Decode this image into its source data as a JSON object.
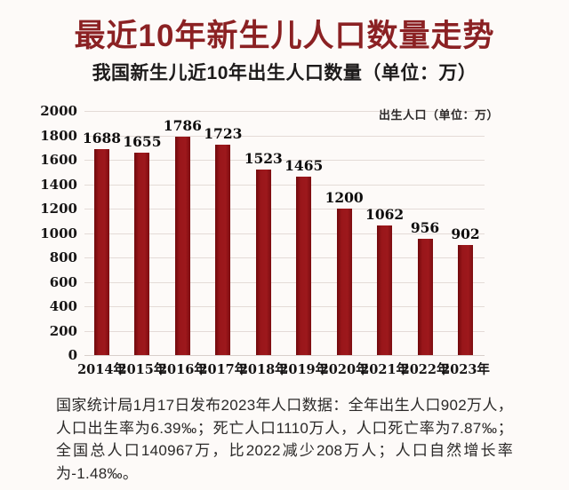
{
  "page": {
    "title": "最近10年新生儿人口数量走势",
    "subtitle": "我国新生儿近10年出生人口数量（单位：万）"
  },
  "chart_data": {
    "type": "bar",
    "title": "我国新生儿近10年出生人口数量（单位：万）",
    "legend": "出生人口（单位：万）",
    "legend_position": "top-right",
    "categories": [
      "2014年",
      "2015年",
      "2016年",
      "2017年",
      "2018年",
      "2019年",
      "2020年",
      "2021年",
      "2022年",
      "2023年"
    ],
    "values": [
      1688,
      1655,
      1786,
      1723,
      1523,
      1465,
      1200,
      1062,
      956,
      902
    ],
    "xlabel": "",
    "ylabel": "",
    "ylim": [
      0,
      2000
    ],
    "ytick_step": 200,
    "grid": true,
    "value_labels": true,
    "bar_color": "#99161a"
  },
  "footer": {
    "note": "国家统计局1月17日发布2023年人口数据：全年出生人口902万人，人口出生率为6.39‰；死亡人口1110万人，人口死亡率为7.87‰；全国总人口140967万，比2022减少208万人；人口自然增长率为-1.48‰。"
  },
  "colors": {
    "background": "#fdfaf8",
    "title": "#8b2123",
    "subtitle": "#1d1b1b",
    "bar": "#99161a",
    "gridline": "#e4dbd7",
    "axis_text": "#171515",
    "footer_text": "#2b2928"
  }
}
